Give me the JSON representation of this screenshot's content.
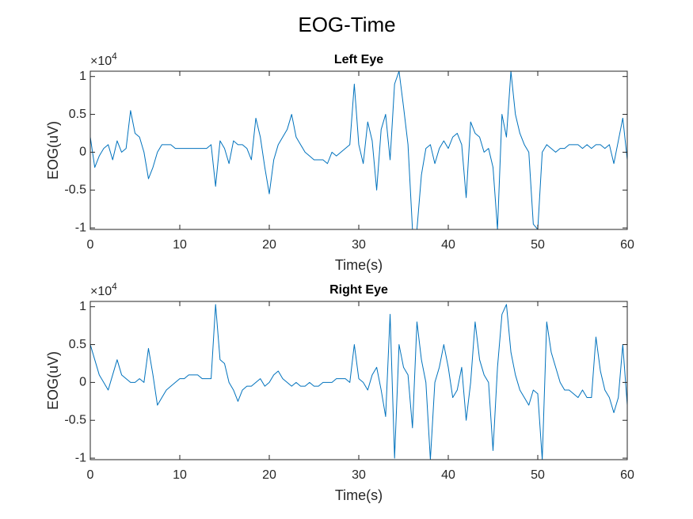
{
  "figure_title": "EOG-Time",
  "chart_data": [
    {
      "type": "line",
      "title": "Left Eye",
      "xlabel": "Time(s)",
      "ylabel": "EOG(uV)",
      "y_multiplier": {
        "base": "×10",
        "exponent": "4"
      },
      "xlim": [
        0,
        60
      ],
      "xticks": [
        0,
        10,
        20,
        30,
        40,
        50,
        60
      ],
      "ylim": [
        -1.02,
        1.07
      ],
      "yticks": [
        -1,
        -0.5,
        0,
        0.5,
        1
      ],
      "x": [
        0,
        0.5,
        1,
        1.5,
        2,
        2.5,
        3,
        3.5,
        4,
        4.5,
        5,
        5.5,
        6,
        6.5,
        7,
        7.5,
        8,
        8.5,
        9,
        9.5,
        10,
        10.5,
        11,
        11.5,
        12,
        12.5,
        13,
        13.5,
        14,
        14.5,
        15,
        15.5,
        16,
        16.5,
        17,
        17.5,
        18,
        18.5,
        19,
        19.5,
        20,
        20.5,
        21,
        21.5,
        22,
        22.5,
        23,
        23.5,
        24,
        24.5,
        25,
        25.5,
        26,
        26.5,
        27,
        27.5,
        28,
        28.5,
        29,
        29.5,
        30,
        30.5,
        31,
        31.5,
        32,
        32.5,
        33,
        33.5,
        34,
        34.5,
        35,
        35.5,
        36,
        36.5,
        37,
        37.5,
        38,
        38.5,
        39,
        39.5,
        40,
        40.5,
        41,
        41.5,
        42,
        42.5,
        43,
        43.5,
        44,
        44.5,
        45,
        45.5,
        46,
        46.5,
        47,
        47.5,
        48,
        48.5,
        49,
        49.5,
        50,
        50.5,
        51,
        51.5,
        52,
        52.5,
        53,
        53.5,
        54,
        54.5,
        55,
        55.5,
        56,
        56.5,
        57,
        57.5,
        58,
        58.5,
        59,
        59.5,
        60
      ],
      "series": [
        {
          "color": "#0072bd",
          "values": [
            0.2,
            -0.2,
            -0.05,
            0.05,
            0.1,
            -0.1,
            0.15,
            0.0,
            0.05,
            0.55,
            0.25,
            0.2,
            0.0,
            -0.35,
            -0.2,
            0.0,
            0.1,
            0.1,
            0.1,
            0.05,
            0.05,
            0.05,
            0.05,
            0.05,
            0.05,
            0.05,
            0.05,
            0.1,
            -0.45,
            0.15,
            0.05,
            -0.15,
            0.15,
            0.1,
            0.1,
            0.05,
            -0.1,
            0.45,
            0.2,
            -0.2,
            -0.55,
            -0.1,
            0.1,
            0.2,
            0.3,
            0.5,
            0.2,
            0.1,
            0.0,
            -0.05,
            -0.1,
            -0.1,
            -0.1,
            -0.15,
            0.0,
            -0.05,
            0.0,
            0.05,
            0.1,
            0.9,
            0.1,
            -0.15,
            0.4,
            0.15,
            -0.5,
            0.3,
            0.5,
            -0.1,
            0.9,
            1.07,
            0.6,
            0.1,
            -1.02,
            -1.02,
            -0.3,
            0.05,
            0.1,
            -0.15,
            0.05,
            0.15,
            0.05,
            0.2,
            0.25,
            0.1,
            -0.6,
            0.4,
            0.25,
            0.2,
            0.0,
            0.05,
            -0.2,
            -1.02,
            0.5,
            0.2,
            1.07,
            0.5,
            0.25,
            0.1,
            0.0,
            -0.95,
            -1.02,
            0.0,
            0.1,
            0.05,
            0.0,
            0.05,
            0.05,
            0.1,
            0.1,
            0.1,
            0.05,
            0.1,
            0.05,
            0.1,
            0.1,
            0.05,
            0.1,
            -0.15,
            0.15,
            0.45,
            -0.1
          ]
        }
      ]
    },
    {
      "type": "line",
      "title": "Right Eye",
      "xlabel": "Time(s)",
      "ylabel": "EOG(uV)",
      "y_multiplier": {
        "base": "×10",
        "exponent": "4"
      },
      "xlim": [
        0,
        60
      ],
      "xticks": [
        0,
        10,
        20,
        30,
        40,
        50,
        60
      ],
      "ylim": [
        -1.02,
        1.07
      ],
      "yticks": [
        -1,
        -0.5,
        0,
        0.5,
        1
      ],
      "x": [
        0,
        0.5,
        1,
        1.5,
        2,
        2.5,
        3,
        3.5,
        4,
        4.5,
        5,
        5.5,
        6,
        6.5,
        7,
        7.5,
        8,
        8.5,
        9,
        9.5,
        10,
        10.5,
        11,
        11.5,
        12,
        12.5,
        13,
        13.5,
        14,
        14.5,
        15,
        15.5,
        16,
        16.5,
        17,
        17.5,
        18,
        18.5,
        19,
        19.5,
        20,
        20.5,
        21,
        21.5,
        22,
        22.5,
        23,
        23.5,
        24,
        24.5,
        25,
        25.5,
        26,
        26.5,
        27,
        27.5,
        28,
        28.5,
        29,
        29.5,
        30,
        30.5,
        31,
        31.5,
        32,
        32.5,
        33,
        33.5,
        34,
        34.5,
        35,
        35.5,
        36,
        36.5,
        37,
        37.5,
        38,
        38.5,
        39,
        39.5,
        40,
        40.5,
        41,
        41.5,
        42,
        42.5,
        43,
        43.5,
        44,
        44.5,
        45,
        45.5,
        46,
        46.5,
        47,
        47.5,
        48,
        48.5,
        49,
        49.5,
        50,
        50.5,
        51,
        51.5,
        52,
        52.5,
        53,
        53.5,
        54,
        54.5,
        55,
        55.5,
        56,
        56.5,
        57,
        57.5,
        58,
        58.5,
        59,
        59.5,
        60
      ],
      "series": [
        {
          "color": "#0072bd",
          "values": [
            0.5,
            0.3,
            0.1,
            0.0,
            -0.1,
            0.1,
            0.3,
            0.1,
            0.05,
            0.0,
            0.0,
            0.05,
            0.0,
            0.45,
            0.1,
            -0.3,
            -0.2,
            -0.1,
            -0.05,
            0.0,
            0.05,
            0.05,
            0.1,
            0.1,
            0.1,
            0.05,
            0.05,
            0.05,
            1.03,
            0.3,
            0.25,
            0.0,
            -0.1,
            -0.25,
            -0.1,
            -0.05,
            -0.05,
            0.0,
            0.05,
            -0.05,
            0.0,
            0.1,
            0.15,
            0.05,
            0.0,
            -0.05,
            0.0,
            -0.05,
            -0.05,
            0.0,
            -0.05,
            -0.05,
            0.0,
            0.0,
            0.0,
            0.05,
            0.05,
            0.05,
            0.0,
            0.5,
            0.05,
            0.0,
            -0.1,
            0.1,
            0.2,
            -0.1,
            -0.45,
            0.9,
            -1.0,
            0.5,
            0.2,
            0.1,
            -0.6,
            0.8,
            0.3,
            0.0,
            -1.02,
            0.0,
            0.2,
            0.5,
            0.2,
            -0.2,
            -0.1,
            0.2,
            -0.5,
            0.0,
            0.8,
            0.3,
            0.1,
            0.0,
            -0.9,
            0.2,
            0.9,
            1.03,
            0.4,
            0.1,
            -0.1,
            -0.2,
            -0.3,
            -0.1,
            -0.15,
            -1.02,
            0.8,
            0.4,
            0.2,
            0.0,
            -0.1,
            -0.1,
            -0.15,
            -0.2,
            -0.1,
            -0.2,
            -0.2,
            0.6,
            0.15,
            -0.1,
            -0.2,
            -0.4,
            -0.2,
            0.5,
            -0.3
          ]
        }
      ]
    }
  ]
}
